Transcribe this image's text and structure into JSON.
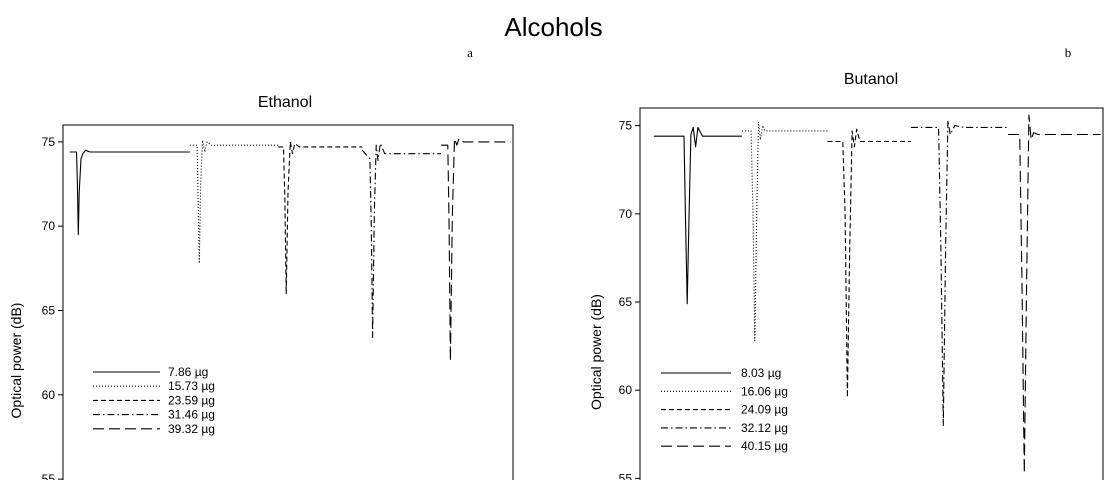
{
  "figure": {
    "title": "Alcohols"
  },
  "chart_data": [
    {
      "type": "line",
      "panel_label": "a",
      "title": "Ethanol",
      "xlabel": "",
      "ylabel": "Optical power (dB)",
      "ylim": [
        54,
        76
      ],
      "yticks": [
        55,
        60,
        65,
        70,
        75
      ],
      "xlim": [
        0,
        100
      ],
      "legend_position": "bottom-left",
      "series": [
        {
          "name": "7.86 µg",
          "dash": "solid",
          "x": [
            1.5,
            3.0,
            3.2,
            3.4,
            3.6,
            4.0,
            4.4,
            5.0,
            6.0,
            10,
            20,
            28.2
          ],
          "y": [
            74.4,
            74.4,
            72.5,
            69.5,
            72.0,
            74.0,
            74.3,
            74.5,
            74.4,
            74.4,
            74.4,
            74.4
          ]
        },
        {
          "name": "15.73 µg",
          "dash": "dotted",
          "x": [
            28.2,
            29.8,
            30.0,
            30.3,
            30.6,
            31.0,
            31.5,
            32.0,
            33.0,
            35,
            40,
            47.8
          ],
          "y": [
            74.8,
            74.8,
            72.0,
            67.8,
            72.5,
            75.1,
            74.4,
            75.0,
            74.8,
            74.8,
            74.8,
            74.8
          ]
        },
        {
          "name": "23.59 µg",
          "dash": "dashed",
          "x": [
            47.8,
            49.0,
            49.3,
            49.6,
            50.0,
            50.5,
            51.0,
            51.5,
            52.5,
            55,
            60,
            66.5
          ],
          "y": [
            74.7,
            74.7,
            71.5,
            66.0,
            72.0,
            75.0,
            74.3,
            74.9,
            74.7,
            74.7,
            74.7,
            74.7
          ]
        },
        {
          "name": "31.46 µg",
          "dash": "dashdot",
          "x": [
            66.5,
            67.5,
            68.2,
            68.5,
            68.8,
            69.2,
            69.6,
            70.0,
            70.5,
            71.5,
            75,
            80,
            84.0
          ],
          "y": [
            74.5,
            74.2,
            74.0,
            70.0,
            63.4,
            71.0,
            74.8,
            73.9,
            74.9,
            74.3,
            74.3,
            74.3,
            74.3
          ]
        },
        {
          "name": "39.32 µg",
          "dash": "longdash",
          "x": [
            84.0,
            85.5,
            85.8,
            86.1,
            86.5,
            87.0,
            87.5,
            88.0,
            89.0,
            92,
            96,
            99.5
          ],
          "y": [
            74.8,
            74.8,
            70.0,
            62.0,
            70.5,
            75.2,
            74.8,
            75.2,
            75.0,
            75.0,
            75.0,
            75.0
          ]
        }
      ]
    },
    {
      "type": "line",
      "panel_label": "b",
      "title": "Butanol",
      "xlabel": "",
      "ylabel": "Optical power (dB)",
      "ylim": [
        54,
        76
      ],
      "yticks": [
        55,
        60,
        65,
        70,
        75
      ],
      "xlim": [
        0,
        100
      ],
      "legend_position": "bottom-left",
      "series": [
        {
          "name": "8.03 µg",
          "dash": "solid",
          "x": [
            3.0,
            9.5,
            9.8,
            10.2,
            10.6,
            11.0,
            11.5,
            12.0,
            12.5,
            13.5,
            15,
            20,
            22.0
          ],
          "y": [
            74.4,
            74.4,
            70.0,
            64.9,
            70.0,
            74.5,
            74.9,
            73.8,
            74.9,
            74.4,
            74.4,
            74.4,
            74.4
          ]
        },
        {
          "name": "16.06 µg",
          "dash": "dotted",
          "x": [
            22.0,
            24.0,
            24.4,
            24.8,
            25.2,
            25.6,
            26.0,
            26.5,
            27.0,
            28.0,
            30,
            35,
            40.5
          ],
          "y": [
            74.7,
            74.7,
            70.0,
            62.8,
            70.0,
            75.2,
            74.2,
            75.0,
            74.7,
            74.7,
            74.7,
            74.7,
            74.7
          ]
        },
        {
          "name": "24.09 µg",
          "dash": "dashed",
          "x": [
            40.5,
            43.8,
            44.3,
            44.8,
            45.3,
            45.8,
            46.3,
            46.8,
            47.5,
            48.5,
            52,
            56,
            58.5
          ],
          "y": [
            74.1,
            74.1,
            70.0,
            59.6,
            68.0,
            74.7,
            73.8,
            74.8,
            74.1,
            74.1,
            74.1,
            74.1,
            74.1
          ]
        },
        {
          "name": "32.12 µg",
          "dash": "dashdot",
          "x": [
            58.5,
            64.5,
            65.0,
            65.5,
            66.0,
            66.5,
            67.0,
            68.0,
            70,
            75,
            79.5
          ],
          "y": [
            74.9,
            74.9,
            68.0,
            58.0,
            68.0,
            75.3,
            74.5,
            75.0,
            74.9,
            74.9,
            74.9
          ]
        },
        {
          "name": "40.15 µg",
          "dash": "longdash",
          "x": [
            79.5,
            82.0,
            82.5,
            83.0,
            83.5,
            84.0,
            84.5,
            85.0,
            86.0,
            90,
            95,
            99.5
          ],
          "y": [
            74.5,
            74.5,
            66.0,
            55.3,
            66.0,
            75.6,
            74.2,
            74.6,
            74.5,
            74.5,
            74.5,
            74.5
          ]
        }
      ]
    }
  ]
}
